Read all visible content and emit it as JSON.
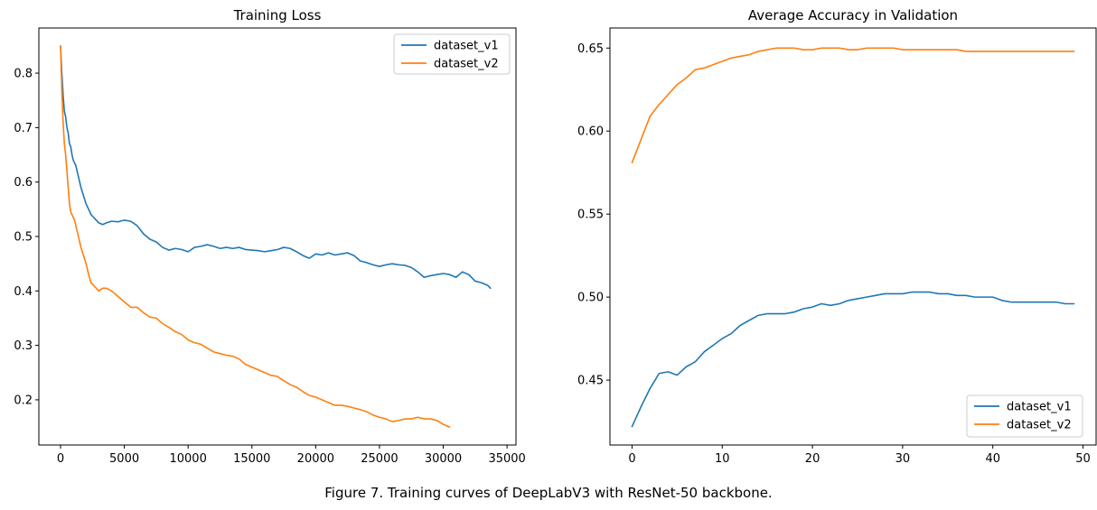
{
  "caption": "Figure 7. Training curves of DeepLabV3 with ResNet-50 backbone.",
  "colors": {
    "dataset_v1": "#1f77b4",
    "dataset_v2": "#ff7f0e"
  },
  "chart_data": [
    {
      "type": "line",
      "title": "Training Loss",
      "xlabel": "",
      "ylabel": "",
      "xlim": [
        -1700,
        35700
      ],
      "ylim": [
        0.117,
        0.883
      ],
      "xticks": [
        0,
        5000,
        10000,
        15000,
        20000,
        25000,
        30000,
        35000
      ],
      "xtick_labels": [
        "0",
        "5000",
        "10000",
        "15000",
        "20000",
        "25000",
        "30000",
        "35000"
      ],
      "yticks": [
        0.2,
        0.3,
        0.4,
        0.5,
        0.6,
        0.7,
        0.8
      ],
      "ytick_labels": [
        "0.2",
        "0.3",
        "0.4",
        "0.5",
        "0.6",
        "0.7",
        "0.8"
      ],
      "grid": false,
      "legend": "top-right",
      "series": [
        {
          "name": "dataset_v1",
          "color": "#1f77b4",
          "x": [
            0,
            100,
            200,
            300,
            400,
            500,
            600,
            700,
            800,
            900,
            1000,
            1200,
            1400,
            1600,
            1800,
            2000,
            2200,
            2400,
            2600,
            2800,
            3000,
            3300,
            3600,
            4000,
            4500,
            5000,
            5500,
            6000,
            6500,
            7000,
            7500,
            8000,
            8500,
            9000,
            9500,
            10000,
            10500,
            11000,
            11500,
            12000,
            12500,
            13000,
            13500,
            14000,
            14500,
            15000,
            15500,
            16000,
            16500,
            17000,
            17500,
            18000,
            18500,
            19000,
            19500,
            20000,
            20500,
            21000,
            21500,
            22000,
            22500,
            23000,
            23500,
            24000,
            24500,
            25000,
            25500,
            26000,
            26500,
            27000,
            27500,
            28000,
            28500,
            29000,
            29500,
            30000,
            30500,
            31000,
            31500,
            32000,
            32500,
            33000,
            33500,
            33700
          ],
          "y": [
            0.85,
            0.8,
            0.76,
            0.73,
            0.72,
            0.7,
            0.69,
            0.67,
            0.665,
            0.65,
            0.64,
            0.63,
            0.61,
            0.59,
            0.575,
            0.56,
            0.55,
            0.54,
            0.535,
            0.53,
            0.525,
            0.522,
            0.525,
            0.528,
            0.527,
            0.53,
            0.528,
            0.52,
            0.505,
            0.495,
            0.49,
            0.48,
            0.475,
            0.478,
            0.476,
            0.472,
            0.48,
            0.482,
            0.485,
            0.482,
            0.478,
            0.48,
            0.478,
            0.48,
            0.476,
            0.475,
            0.474,
            0.472,
            0.474,
            0.476,
            0.48,
            0.478,
            0.472,
            0.465,
            0.46,
            0.468,
            0.466,
            0.47,
            0.466,
            0.468,
            0.47,
            0.465,
            0.455,
            0.452,
            0.448,
            0.445,
            0.448,
            0.45,
            0.448,
            0.447,
            0.443,
            0.435,
            0.425,
            0.428,
            0.43,
            0.432,
            0.43,
            0.425,
            0.435,
            0.43,
            0.418,
            0.415,
            0.41,
            0.405
          ]
        },
        {
          "name": "dataset_v2",
          "color": "#ff7f0e",
          "x": [
            0,
            100,
            200,
            300,
            400,
            500,
            600,
            700,
            800,
            900,
            1000,
            1100,
            1200,
            1400,
            1600,
            1800,
            2000,
            2200,
            2400,
            2600,
            2800,
            3000,
            3300,
            3600,
            4000,
            4500,
            5000,
            5500,
            6000,
            6500,
            7000,
            7500,
            8000,
            8500,
            9000,
            9500,
            10000,
            10500,
            11000,
            11500,
            12000,
            12500,
            13000,
            13500,
            14000,
            14500,
            15000,
            15500,
            16000,
            16500,
            17000,
            17500,
            18000,
            18500,
            19000,
            19500,
            20000,
            20500,
            21000,
            21500,
            22000,
            22500,
            23000,
            23500,
            24000,
            24500,
            25000,
            25500,
            26000,
            26500,
            27000,
            27500,
            28000,
            28500,
            29000,
            29500,
            30000,
            30500
          ],
          "y": [
            0.85,
            0.77,
            0.71,
            0.67,
            0.65,
            0.62,
            0.59,
            0.56,
            0.545,
            0.54,
            0.535,
            0.53,
            0.52,
            0.5,
            0.48,
            0.465,
            0.45,
            0.43,
            0.415,
            0.41,
            0.405,
            0.4,
            0.405,
            0.405,
            0.4,
            0.39,
            0.38,
            0.37,
            0.37,
            0.36,
            0.352,
            0.35,
            0.34,
            0.333,
            0.325,
            0.32,
            0.31,
            0.305,
            0.302,
            0.295,
            0.288,
            0.285,
            0.282,
            0.28,
            0.275,
            0.265,
            0.26,
            0.255,
            0.25,
            0.245,
            0.243,
            0.235,
            0.228,
            0.223,
            0.215,
            0.208,
            0.205,
            0.2,
            0.195,
            0.19,
            0.19,
            0.188,
            0.185,
            0.182,
            0.178,
            0.172,
            0.168,
            0.165,
            0.16,
            0.162,
            0.165,
            0.165,
            0.168,
            0.165,
            0.165,
            0.162,
            0.155,
            0.15
          ]
        }
      ]
    },
    {
      "type": "line",
      "title": "Average Accuracy in Validation",
      "xlabel": "",
      "ylabel": "",
      "xlim": [
        -2.45,
        51.45
      ],
      "ylim": [
        0.4109,
        0.6621
      ],
      "xticks": [
        0,
        10,
        20,
        30,
        40,
        50
      ],
      "xtick_labels": [
        "0",
        "10",
        "20",
        "30",
        "40",
        "50"
      ],
      "yticks": [
        0.45,
        0.5,
        0.55,
        0.6,
        0.65
      ],
      "ytick_labels": [
        "0.45",
        "0.50",
        "0.55",
        "0.60",
        "0.65"
      ],
      "grid": false,
      "legend": "bottom-right",
      "series": [
        {
          "name": "dataset_v1",
          "color": "#1f77b4",
          "x": [
            0,
            1,
            2,
            3,
            4,
            5,
            6,
            7,
            8,
            9,
            10,
            11,
            12,
            13,
            14,
            15,
            16,
            17,
            18,
            19,
            20,
            21,
            22,
            23,
            24,
            25,
            26,
            27,
            28,
            29,
            30,
            31,
            32,
            33,
            34,
            35,
            36,
            37,
            38,
            39,
            40,
            41,
            42,
            43,
            44,
            45,
            46,
            47,
            48,
            49
          ],
          "y": [
            0.422,
            0.434,
            0.445,
            0.454,
            0.455,
            0.453,
            0.458,
            0.461,
            0.467,
            0.471,
            0.475,
            0.478,
            0.483,
            0.486,
            0.489,
            0.49,
            0.49,
            0.49,
            0.491,
            0.493,
            0.494,
            0.496,
            0.495,
            0.496,
            0.498,
            0.499,
            0.5,
            0.501,
            0.502,
            0.502,
            0.502,
            0.503,
            0.503,
            0.503,
            0.502,
            0.502,
            0.501,
            0.501,
            0.5,
            0.5,
            0.5,
            0.498,
            0.497,
            0.497,
            0.497,
            0.497,
            0.497,
            0.497,
            0.496,
            0.496
          ]
        },
        {
          "name": "dataset_v2",
          "color": "#ff7f0e",
          "x": [
            0,
            1,
            2,
            3,
            4,
            5,
            6,
            7,
            8,
            9,
            10,
            11,
            12,
            13,
            14,
            15,
            16,
            17,
            18,
            19,
            20,
            21,
            22,
            23,
            24,
            25,
            26,
            27,
            28,
            29,
            30,
            31,
            32,
            33,
            34,
            35,
            36,
            37,
            38,
            39,
            40,
            41,
            42,
            43,
            44,
            45,
            46,
            47,
            48,
            49
          ],
          "y": [
            0.581,
            0.595,
            0.609,
            0.616,
            0.622,
            0.628,
            0.632,
            0.637,
            0.638,
            0.64,
            0.642,
            0.644,
            0.645,
            0.646,
            0.648,
            0.649,
            0.65,
            0.65,
            0.65,
            0.649,
            0.649,
            0.65,
            0.65,
            0.65,
            0.649,
            0.649,
            0.65,
            0.65,
            0.65,
            0.65,
            0.649,
            0.649,
            0.649,
            0.649,
            0.649,
            0.649,
            0.649,
            0.648,
            0.648,
            0.648,
            0.648,
            0.648,
            0.648,
            0.648,
            0.648,
            0.648,
            0.648,
            0.648,
            0.648,
            0.648
          ]
        }
      ]
    }
  ]
}
